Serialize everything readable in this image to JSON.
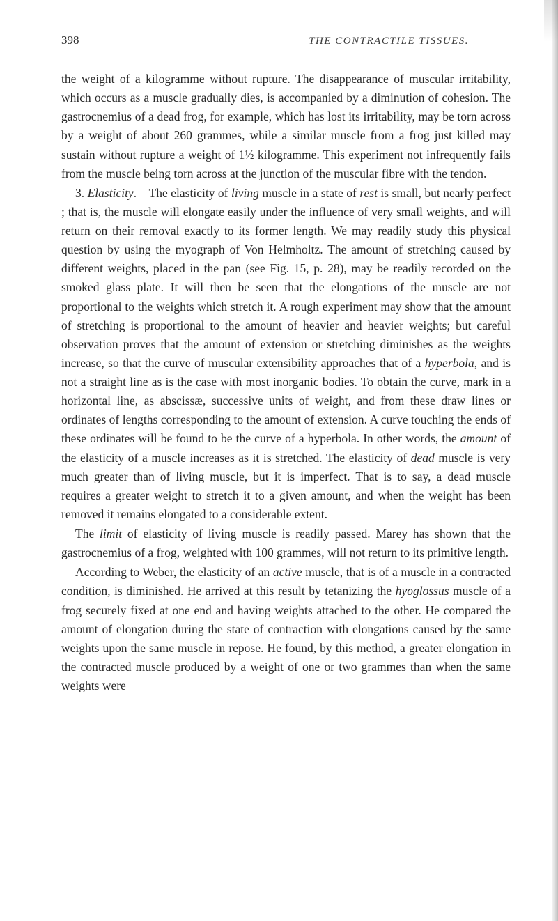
{
  "header": {
    "page_number": "398",
    "running_title": "THE CONTRACTILE TISSUES."
  },
  "paragraphs": {
    "p1_a": "the weight of a kilogramme without rupture. The disappearance of muscular irritability, which occurs as a muscle gradually dies, is accompanied by a diminution of cohesion. The gastrocnemius of a dead frog, for example, which has lost its irritability, may be torn across by a weight of about 260 grammes, while a similar muscle from a frog just killed may sustain without rupture a weight of 1½ kilogramme. This experiment not infrequently fails from the muscle being torn across at the junction of the muscular fibre with the tendon.",
    "p2_lead": "3. ",
    "p2_word": "Elasticity",
    "p2_a": ".—The elasticity of ",
    "p2_word2": "living",
    "p2_b": " muscle in a state of ",
    "p2_word3": "rest",
    "p2_c": " is small, but nearly perfect ; that is, the muscle will elongate easily under the influence of very small weights, and will return on their removal exactly to its former length. We may readily study this physical question by using the myograph of Von Helmholtz. The amount of stretching caused by different weights, placed in the pan (see Fig. 15, p. 28), may be readily recorded on the smoked glass plate. It will then be seen that the elongations of the muscle are not proportional to the weights which stretch it. A rough experiment may show that the amount of stretching is proportional to the amount of heavier and heavier weights; but careful observation proves that the amount of extension or stretching diminishes as the weights increase, so that the curve of muscular extensibility approaches that of a ",
    "p2_word4": "hyperbola",
    "p2_d": ", and is not a straight line as is the case with most inorganic bodies. To obtain the curve, mark in a horizontal line, as abscissæ, successive units of weight, and from these draw lines or ordinates of lengths corresponding to the amount of extension. A curve touching the ends of these ordinates will be found to be the curve of a hyperbola. In other words, the ",
    "p2_word5": "amount",
    "p2_e": " of the elasticity of a muscle increases as it is stretched. The elasticity of ",
    "p2_word6": "dead",
    "p2_f": " muscle is very much greater than of living muscle, but it is imperfect. That is to say, a dead muscle requires a greater weight to stretch it to a given amount, and when the weight has been removed it remains elongated to a considerable extent.",
    "p3_a": "The ",
    "p3_word1": "limit",
    "p3_b": " of elasticity of living muscle is readily passed. Marey has shown that the gastrocnemius of a frog, weighted with 100 grammes, will not return to its primitive length.",
    "p4_a": "According to Weber, the elasticity of an ",
    "p4_word1": "active",
    "p4_b": " muscle, that is of a muscle in a contracted condition, is diminished. He arrived at this result by tetanizing the ",
    "p4_word2": "hyoglossus",
    "p4_c": " muscle of a frog securely fixed at one end and having weights attached to the other. He compared the amount of elongation during the state of contraction with elongations caused by the same weights upon the same muscle in repose. He found, by this method, a greater elongation in the contracted muscle produced by a weight of one or two grammes than when the same weights were"
  },
  "colors": {
    "text": "#2a2a2a",
    "background": "#ffffff"
  }
}
